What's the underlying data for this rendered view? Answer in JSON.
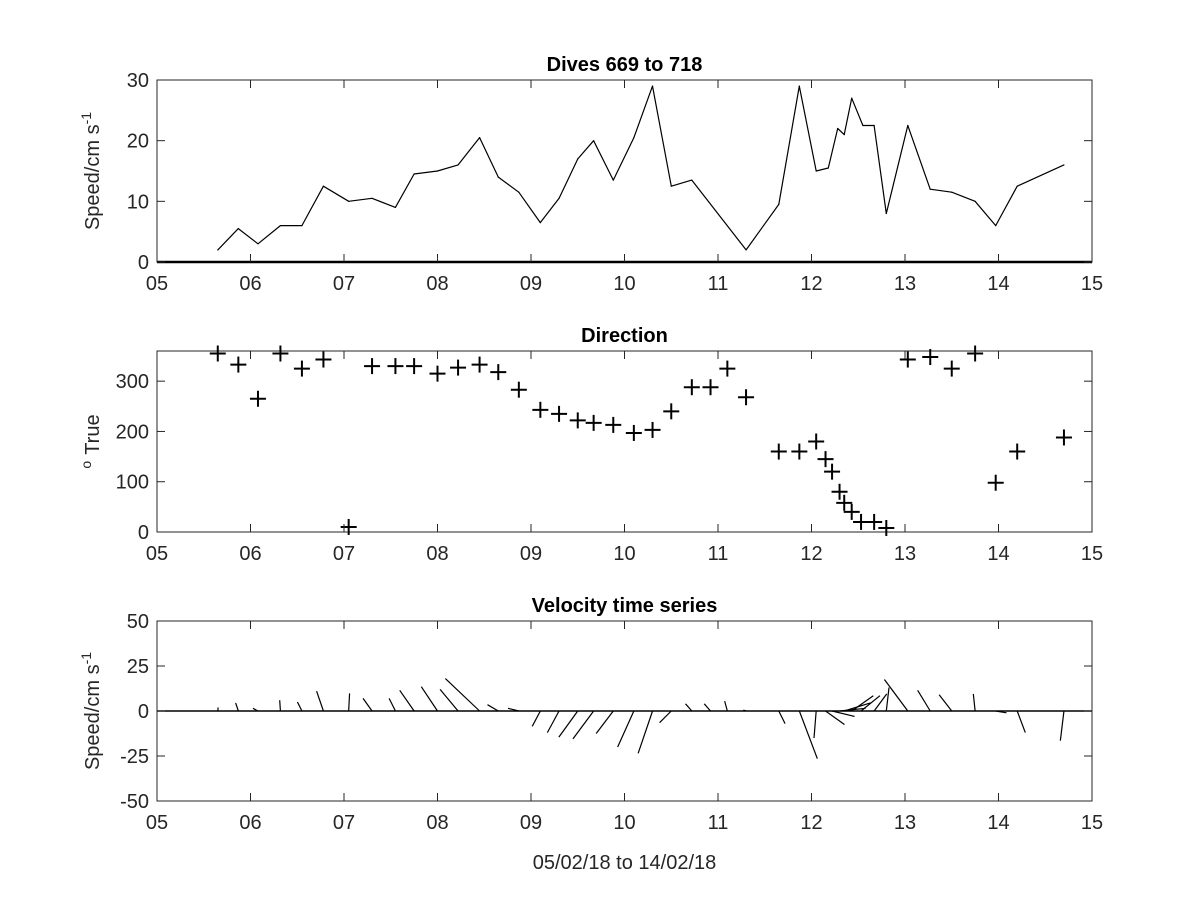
{
  "chart_data": [
    {
      "type": "line",
      "title": "Dives 669 to 718",
      "xlabel": "",
      "ylabel": "Speed/cm s",
      "ylabel_superscript": "-1",
      "xlim": [
        5,
        15
      ],
      "ylim": [
        0,
        30
      ],
      "xtick_labels": [
        "05",
        "06",
        "07",
        "08",
        "09",
        "10",
        "11",
        "12",
        "13",
        "14",
        "15"
      ],
      "yticks": [
        0,
        10,
        20,
        30
      ],
      "ytick_labels": [
        "0",
        "10",
        "20",
        "30"
      ],
      "zero_line": true,
      "color": "#000000",
      "series": [
        {
          "x": [
            5.65,
            5.87,
            6.08,
            6.32,
            6.55,
            6.78,
            7.05,
            7.3,
            7.55,
            7.75,
            8.0,
            8.22,
            8.45,
            8.65,
            8.87,
            9.1,
            9.3,
            9.5,
            9.67,
            9.88,
            10.1,
            10.3,
            10.5,
            10.72,
            11.3,
            11.65,
            11.87,
            12.05,
            12.18,
            12.28,
            12.35,
            12.43,
            12.55,
            12.67,
            12.8,
            13.03,
            13.27,
            13.5,
            13.75,
            13.97,
            14.2,
            14.7
          ],
          "y": [
            2,
            5.5,
            3,
            6,
            6,
            12.5,
            10,
            10.5,
            9,
            14.5,
            15,
            16,
            20.5,
            14,
            11.5,
            6.5,
            10.5,
            17,
            20,
            13.5,
            20.5,
            29,
            12.5,
            13.5,
            2,
            9.5,
            29,
            15,
            15.5,
            22,
            21,
            27,
            22.5,
            22.5,
            8,
            22.5,
            12,
            11.5,
            10,
            6,
            12.5,
            16
          ]
        }
      ]
    },
    {
      "type": "scatter",
      "title": "Direction",
      "xlabel": "",
      "ylabel": "True",
      "ylabel_superscript": "o",
      "xlim": [
        5,
        15
      ],
      "ylim": [
        0,
        360
      ],
      "xtick_labels": [
        "05",
        "06",
        "07",
        "08",
        "09",
        "10",
        "11",
        "12",
        "13",
        "14",
        "15"
      ],
      "yticks": [
        0,
        100,
        200,
        300
      ],
      "ytick_labels": [
        "0",
        "100",
        "200",
        "300"
      ],
      "marker": "+",
      "color": "#000000",
      "series": [
        {
          "x": [
            5.65,
            5.87,
            6.08,
            6.32,
            6.55,
            6.78,
            7.05,
            7.3,
            7.55,
            7.75,
            8.0,
            8.22,
            8.45,
            8.65,
            8.87,
            9.1,
            9.3,
            9.5,
            9.67,
            9.88,
            10.1,
            10.3,
            10.5,
            10.72,
            10.92,
            11.1,
            11.3,
            11.65,
            11.87,
            12.05,
            12.15,
            12.22,
            12.3,
            12.35,
            12.43,
            12.53,
            12.67,
            12.8,
            13.03,
            13.27,
            13.5,
            13.75,
            13.97,
            14.2,
            14.7
          ],
          "y": [
            355,
            333,
            265,
            355,
            325,
            343,
            10,
            330,
            330,
            330,
            315,
            327,
            333,
            318,
            283,
            243,
            235,
            222,
            217,
            213,
            197,
            203,
            240,
            288,
            288,
            325,
            268,
            160,
            160,
            180,
            145,
            120,
            80,
            58,
            40,
            20,
            20,
            8,
            343,
            348,
            325,
            355,
            98,
            160,
            188
          ]
        }
      ]
    },
    {
      "type": "line",
      "subtype": "stick",
      "title": "Velocity time series",
      "xlabel": "05/02/18 to 14/02/18",
      "ylabel": "Speed/cm s",
      "ylabel_superscript": "-1",
      "xlim": [
        5,
        15
      ],
      "ylim": [
        -50,
        50
      ],
      "xtick_labels": [
        "05",
        "06",
        "07",
        "08",
        "09",
        "10",
        "11",
        "12",
        "13",
        "14",
        "15"
      ],
      "yticks": [
        -50,
        -25,
        0,
        25,
        50
      ],
      "ytick_labels": [
        "-50",
        "-25",
        "0",
        "25",
        "50"
      ],
      "zero_line": true,
      "color": "#000000",
      "series": [
        {
          "x": [
            5.65,
            5.87,
            6.08,
            6.32,
            6.55,
            6.78,
            7.05,
            7.3,
            7.55,
            7.75,
            8.0,
            8.22,
            8.45,
            8.65,
            8.87,
            9.1,
            9.3,
            9.5,
            9.67,
            9.88,
            10.1,
            10.3,
            10.5,
            10.72,
            10.92,
            11.1,
            11.3,
            11.65,
            11.87,
            12.05,
            12.15,
            12.22,
            12.3,
            12.35,
            12.43,
            12.53,
            12.67,
            12.8,
            13.03,
            13.27,
            13.5,
            13.75,
            13.97,
            14.2,
            14.7
          ],
          "u": [
            0.2,
            -1.5,
            -2.8,
            -0.4,
            -2.5,
            -3.8,
            0.5,
            -5.0,
            -3.5,
            -8.0,
            -9.0,
            -10.0,
            -19.0,
            -6.0,
            -6.0,
            -4.5,
            -6.5,
            -10.5,
            -11.5,
            -9.5,
            -9.0,
            -8.0,
            -6.5,
            -3.5,
            -3.5,
            -1.5,
            -1.5,
            3.5,
            10.0,
            -1.2,
            10.5,
            12.5,
            14.5,
            14.5,
            12.0,
            10.5,
            7.0,
            1.5,
            -13.0,
            -7.0,
            -7.0,
            -1.0,
            6.0,
            4.5,
            -2.0
          ],
          "v": [
            2.0,
            4.5,
            1.5,
            6.0,
            5.0,
            11.0,
            9.8,
            7.0,
            7.0,
            11.5,
            13.5,
            12.0,
            18.0,
            3.5,
            1.5,
            -8.5,
            -12.0,
            -14.5,
            -15.5,
            -12.5,
            -20.0,
            -23.5,
            -6.5,
            4.0,
            4.0,
            5.5,
            0.5,
            -7.0,
            -26.5,
            -15.0,
            -7.5,
            -3.0,
            1.5,
            4.5,
            8.5,
            8.5,
            9.5,
            13.0,
            17.5,
            11.5,
            9.0,
            9.5,
            -1.0,
            -12.0,
            -16.5
          ]
        }
      ]
    }
  ]
}
